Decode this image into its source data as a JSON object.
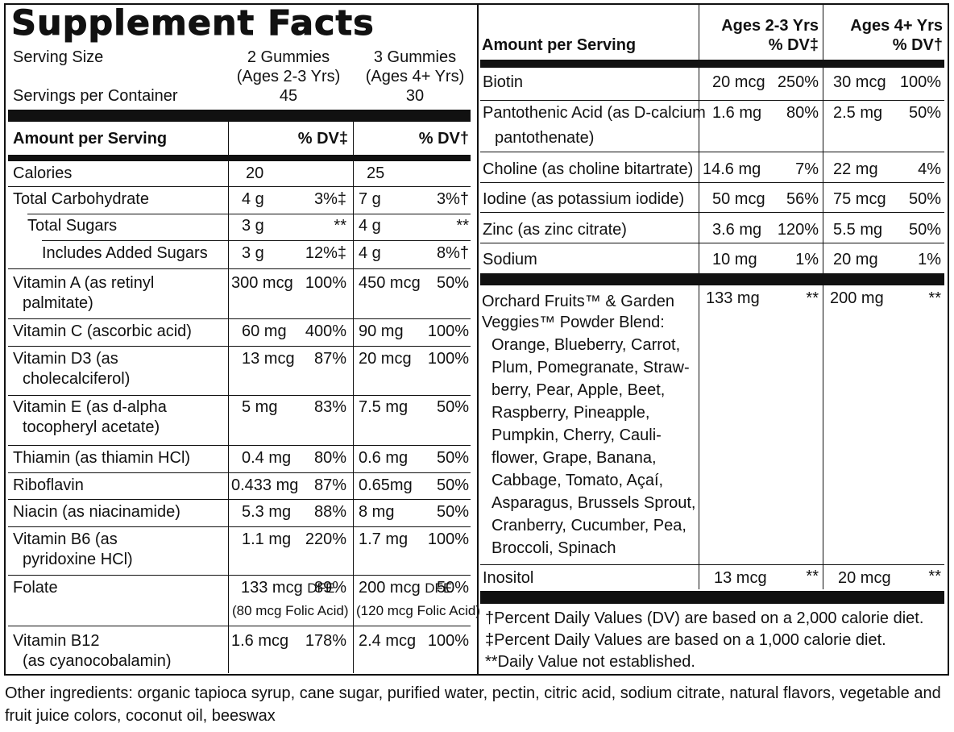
{
  "title": "Supplement Facts",
  "serving": {
    "size_label": "Serving Size",
    "container_label": "Servings per Container",
    "a_size": "2 Gummies",
    "a_age": "(Ages 2-3 Yrs)",
    "a_count": "45",
    "b_size": "3 Gummies",
    "b_age": "(Ages 4+ Yrs)",
    "b_count": "30"
  },
  "left_header": {
    "amount": "Amount per Serving",
    "dv_a": "% DV‡",
    "dv_b": "% DV†"
  },
  "left_rows": [
    {
      "name": "Calories",
      "a_amt": "20",
      "a_dv": "",
      "b_amt": "25",
      "b_dv": ""
    },
    {
      "name": "Total Carbohydrate",
      "a_amt": "4 g",
      "a_dv": "3%‡",
      "b_amt": "7 g",
      "b_dv": "3%†"
    },
    {
      "name": "Total Sugars",
      "a_amt": "3 g",
      "a_dv": "**",
      "b_amt": "4 g",
      "b_dv": "**"
    },
    {
      "name": "Includes Added Sugars",
      "a_amt": "3 g",
      "a_dv": "12%‡",
      "b_amt": "4 g",
      "b_dv": "8%†"
    },
    {
      "name": "Vitamin A (as retinyl",
      "name2": "palmitate)",
      "a_amt": "300 mcg",
      "a_dv": "100%",
      "b_amt": "450 mcg",
      "b_dv": "50%"
    },
    {
      "name": "Vitamin C (ascorbic acid)",
      "a_amt": "60 mg",
      "a_dv": "400%",
      "b_amt": "90 mg",
      "b_dv": "100%"
    },
    {
      "name": "Vitamin D3 (as",
      "name2": "cholecalciferol)",
      "a_amt": "13 mcg",
      "a_dv": "87%",
      "b_amt": "20 mcg",
      "b_dv": "100%"
    },
    {
      "name": "Vitamin E (as d-alpha",
      "name2": "tocopheryl acetate)",
      "a_amt": "5 mg",
      "a_dv": "83%",
      "b_amt": "7.5 mg",
      "b_dv": "50%"
    },
    {
      "name": "Thiamin (as thiamin HCl)",
      "a_amt": "0.4 mg",
      "a_dv": "80%",
      "b_amt": "0.6 mg",
      "b_dv": "50%"
    },
    {
      "name": "Riboflavin",
      "a_amt": "0.433 mg",
      "a_dv": "87%",
      "b_amt": "0.65mg",
      "b_dv": "50%"
    },
    {
      "name": "Niacin (as niacinamide)",
      "a_amt": "5.3 mg",
      "a_dv": "88%",
      "b_amt": "8 mg",
      "b_dv": "50%"
    },
    {
      "name": "Vitamin B6 (as",
      "name2": "pyridoxine HCl)",
      "a_amt": "1.1 mg",
      "a_dv": "220%",
      "b_amt": "1.7 mg",
      "b_dv": "100%"
    },
    {
      "name": "Folate",
      "a_amt": "133 mcg",
      "a_unit": "DFE",
      "a_dv": "89%",
      "a_sub": "(80 mcg Folic Acid)",
      "b_amt": "200 mcg",
      "b_unit": "DFE",
      "b_dv": "50%",
      "b_sub": "(120 mcg Folic Acid)"
    },
    {
      "name": "Vitamin B12",
      "name2": "(as cyanocobalamin)",
      "a_amt": "1.6 mcg",
      "a_dv": "178%",
      "b_amt": "2.4 mcg",
      "b_dv": "100%"
    }
  ],
  "right_header": {
    "amount": "Amount per Serving",
    "a_age": "Ages 2-3 Yrs",
    "a_dv": "% DV‡",
    "b_age": "Ages 4+ Yrs",
    "b_dv": "% DV†"
  },
  "right_rows": [
    {
      "name": "Biotin",
      "a_amt": "20 mcg",
      "a_dv": "250%",
      "b_amt": "30 mcg",
      "b_dv": "100%"
    },
    {
      "name": "Pantothenic Acid (as D-calcium",
      "name2": "pantothenate)",
      "a_amt": "1.6 mg",
      "a_dv": "80%",
      "b_amt": "2.5 mg",
      "b_dv": "50%"
    },
    {
      "name": "Choline (as choline bitartrate)",
      "a_amt": "14.6 mg",
      "a_dv": "7%",
      "b_amt": "22 mg",
      "b_dv": "4%"
    },
    {
      "name": "Iodine (as potassium iodide)",
      "a_amt": "50 mcg",
      "a_dv": "56%",
      "b_amt": "75 mcg",
      "b_dv": "50%"
    },
    {
      "name": "Zinc (as zinc citrate)",
      "a_amt": "3.6 mg",
      "a_dv": "120%",
      "b_amt": "5.5 mg",
      "b_dv": "50%"
    },
    {
      "name": "Sodium",
      "a_amt": "10 mg",
      "a_dv": "1%",
      "b_amt": "20 mg",
      "b_dv": "1%"
    }
  ],
  "blend": {
    "title1": "Orchard Fruits™ & Garden",
    "title2": "Veggies™ Powder Blend:",
    "lines": [
      "Orange, Blueberry, Carrot,",
      "Plum, Pomegranate, Straw-",
      "berry, Pear, Apple, Beet,",
      "Raspberry, Pineapple,",
      "Pumpkin, Cherry, Cauli-",
      "flower, Grape, Banana,",
      "Cabbage, Tomato, Açaí,",
      "Asparagus, Brussels Sprout,",
      "Cranberry, Cucumber, Pea,",
      "Broccoli, Spinach"
    ],
    "a_amt": "133 mg",
    "a_dv": "**",
    "b_amt": "200 mg",
    "b_dv": "**"
  },
  "inositol": {
    "name": "Inositol",
    "a_amt": "13 mcg",
    "a_dv": "**",
    "b_amt": "20 mcg",
    "b_dv": "**"
  },
  "footnotes": [
    "†Percent Daily Values (DV) are based on a 2,000 calorie diet.",
    "‡Percent Daily Values are based on a 1,000 calorie diet.",
    "**Daily Value not established."
  ],
  "other_ingredients": "Other ingredients: organic tapioca syrup, cane sugar, purified water, pectin, citric acid, sodium citrate, natural flavors, vegetable and fruit juice colors, coconut oil, beeswax"
}
